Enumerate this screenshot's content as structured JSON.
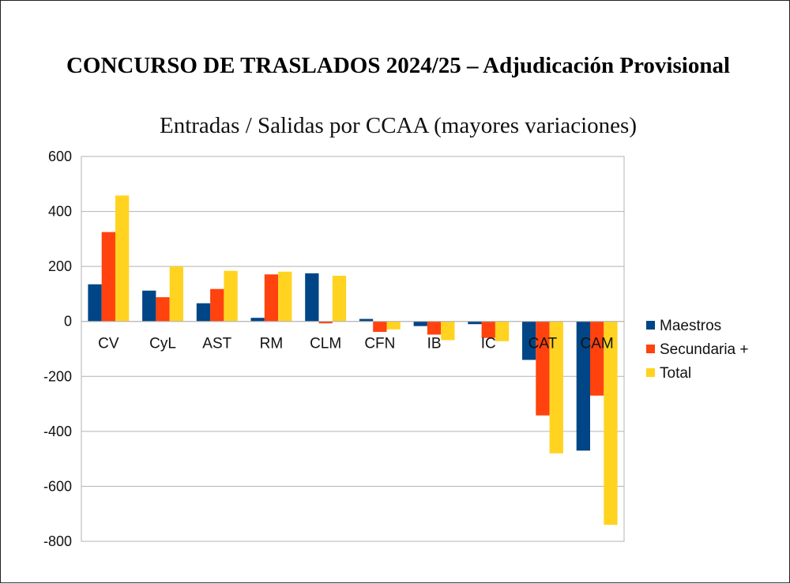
{
  "page": {
    "title": "CONCURSO DE TRASLADOS 2024/25 – Adjudicación Provisional"
  },
  "chart_data": {
    "type": "bar",
    "title": "Entradas / Salidas por CCAA (mayores variaciones)",
    "categories": [
      "CV",
      "CyL",
      "AST",
      "RM",
      "CLM",
      "CFN",
      "IB",
      "IC",
      "CAT",
      "CAM"
    ],
    "series": [
      {
        "name": "Maestros",
        "color": "#004586",
        "values": [
          135,
          112,
          66,
          13,
          175,
          9,
          -17,
          -10,
          -140,
          -470
        ]
      },
      {
        "name": "Secundaria +",
        "color": "#ff420e",
        "values": [
          325,
          88,
          118,
          171,
          -7,
          -38,
          -48,
          -60,
          -342,
          -270
        ]
      },
      {
        "name": "Total",
        "color": "#ffd320",
        "values": [
          458,
          200,
          184,
          181,
          166,
          -29,
          -68,
          -72,
          -480,
          -740
        ]
      }
    ],
    "ylim": [
      -800,
      600
    ],
    "yticks": [
      "600",
      "400",
      "200",
      "0",
      "-200",
      "-400",
      "-600",
      "-800"
    ],
    "ytick_values": [
      600,
      400,
      200,
      0,
      -200,
      -400,
      -600,
      -800
    ],
    "grid": true,
    "legend": "right"
  }
}
